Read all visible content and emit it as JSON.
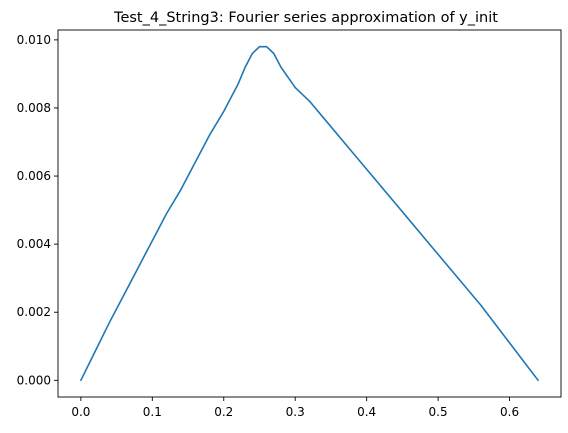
{
  "chart_data": {
    "type": "line",
    "title": "Test_4_String3: Fourier series approximation of y_init",
    "xlabel": "",
    "ylabel": "",
    "xlim": [
      -0.032,
      0.672
    ],
    "ylim": [
      -0.00049,
      0.01029
    ],
    "grid": false,
    "legend": "none",
    "x_ticks": [
      0.0,
      0.1,
      0.2,
      0.3,
      0.4,
      0.5,
      0.6
    ],
    "x_tick_labels": [
      "0.0",
      "0.1",
      "0.2",
      "0.3",
      "0.4",
      "0.5",
      "0.6"
    ],
    "y_ticks": [
      0.0,
      0.002,
      0.004,
      0.006,
      0.008,
      0.01
    ],
    "y_tick_labels": [
      "0.000",
      "0.002",
      "0.004",
      "0.006",
      "0.008",
      "0.010"
    ],
    "series": [
      {
        "color": "#1f77b4",
        "x": [
          0.0,
          0.02,
          0.04,
          0.06,
          0.08,
          0.1,
          0.12,
          0.14,
          0.16,
          0.18,
          0.2,
          0.22,
          0.23,
          0.24,
          0.25,
          0.26,
          0.27,
          0.28,
          0.29,
          0.3,
          0.32,
          0.34,
          0.36,
          0.38,
          0.4,
          0.42,
          0.44,
          0.46,
          0.48,
          0.5,
          0.52,
          0.54,
          0.56,
          0.58,
          0.6,
          0.62,
          0.64
        ],
        "values": [
          0.0,
          0.00085,
          0.0017,
          0.0025,
          0.0033,
          0.0041,
          0.0049,
          0.0056,
          0.0064,
          0.0072,
          0.0079,
          0.0087,
          0.0092,
          0.0096,
          0.0098,
          0.0098,
          0.0096,
          0.0092,
          0.0089,
          0.0086,
          0.0082,
          0.0077,
          0.0072,
          0.0067,
          0.0062,
          0.0057,
          0.0052,
          0.0047,
          0.0042,
          0.0037,
          0.0032,
          0.0027,
          0.0022,
          0.00165,
          0.0011,
          0.00055,
          0.0
        ]
      }
    ]
  }
}
